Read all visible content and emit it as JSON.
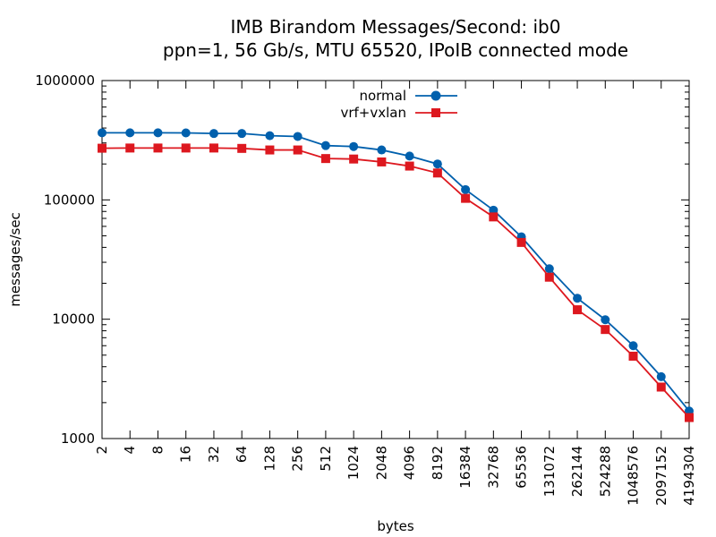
{
  "chart_data": {
    "type": "line",
    "title": "IMB Birandom Messages/Second: ib0",
    "subtitle": "ppn=1, 56 Gb/s, MTU 65520, IPoIB connected mode",
    "xlabel": "bytes",
    "ylabel": "messages/sec",
    "xscale": "log",
    "yscale": "log",
    "xlim": [
      2,
      4194304
    ],
    "ylim": [
      1000,
      1000000
    ],
    "x_tick_labels": [
      "2",
      "4",
      "8",
      "16",
      "32",
      "64",
      "128",
      "256",
      "512",
      "1024",
      "2048",
      "4096",
      "8192",
      "16384",
      "32768",
      "65536",
      "131072",
      "262144",
      "524288",
      "1048576",
      "2097152",
      "4194304"
    ],
    "y_tick_labels": [
      "1000",
      "10000",
      "100000",
      "1000000"
    ],
    "legend_position": "top-center",
    "grid": false,
    "x": [
      2,
      4,
      8,
      16,
      32,
      64,
      128,
      256,
      512,
      1024,
      2048,
      4096,
      8192,
      16384,
      32768,
      65536,
      131072,
      262144,
      524288,
      1048576,
      2097152,
      4194304
    ],
    "series": [
      {
        "name": "normal",
        "color": "#0060ad",
        "marker": "circle",
        "values": [
          365000,
          365000,
          365000,
          364000,
          360000,
          360000,
          345000,
          340000,
          285000,
          280000,
          262000,
          233000,
          200000,
          122000,
          82000,
          49000,
          26500,
          15000,
          9900,
          6000,
          3300,
          1700
        ]
      },
      {
        "name": "vrf+vxlan",
        "color": "#dd181f",
        "marker": "square",
        "values": [
          271000,
          272000,
          272000,
          272000,
          272000,
          270000,
          262000,
          262000,
          222000,
          220000,
          208000,
          192000,
          168000,
          103000,
          72000,
          44000,
          22500,
          12000,
          8200,
          4900,
          2700,
          1500
        ]
      }
    ]
  }
}
